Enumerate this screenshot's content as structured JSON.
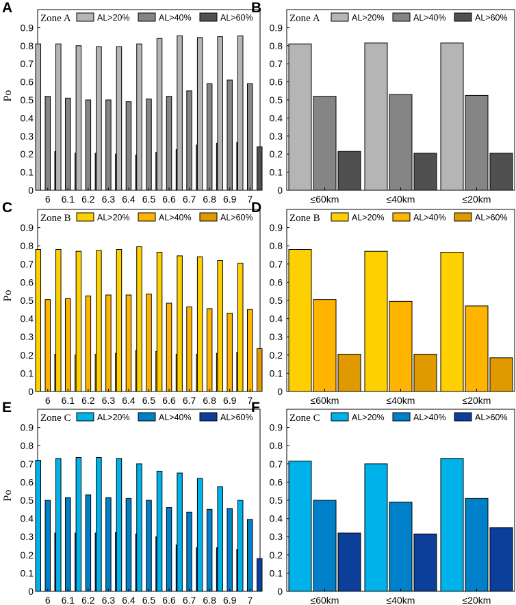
{
  "figure_title": "",
  "colors": {
    "A": [
      "#b5b5b5",
      "#858585",
      "#505050"
    ],
    "B": [
      "#ffd000",
      "#ffb400",
      "#e09a00"
    ],
    "C": [
      "#00b2ea",
      "#0080c8",
      "#0b3f99"
    ]
  },
  "chart_data": [
    {
      "id": "A",
      "panel_label": "A",
      "type": "bar",
      "zone_label": "Zone A",
      "ylabel": "Po",
      "ylim": [
        0,
        1.0
      ],
      "ticks": [
        "0",
        "0.1",
        "0.2",
        "0.3",
        "0.4",
        "0.5",
        "0.6",
        "0.7",
        "0.8",
        "0.9"
      ],
      "categories": [
        "6",
        "6.1",
        "6.2",
        "6.3",
        "6.4",
        "6.5",
        "6.6",
        "6.7",
        "6.8",
        "6.9",
        "7"
      ],
      "series": [
        {
          "name": "AL>20%",
          "values": [
            0.81,
            0.81,
            0.8,
            0.795,
            0.795,
            0.81,
            0.84,
            0.855,
            0.845,
            0.85,
            0.855
          ]
        },
        {
          "name": "AL>40%",
          "values": [
            0.52,
            0.51,
            0.5,
            0.5,
            0.49,
            0.505,
            0.52,
            0.55,
            0.59,
            0.61,
            0.59
          ]
        },
        {
          "name": "AL>60%",
          "values": [
            0.215,
            0.205,
            0.205,
            0.2,
            0.195,
            0.21,
            0.225,
            0.25,
            0.26,
            0.265,
            0.24
          ]
        }
      ]
    },
    {
      "id": "B",
      "panel_label": "B",
      "type": "bar",
      "zone_label": "Zone A",
      "ylabel": "",
      "ylim": [
        0,
        1.0
      ],
      "ticks": [
        "0",
        "0.1",
        "0.2",
        "0.3",
        "0.4",
        "0.5",
        "0.6",
        "0.7",
        "0.8",
        "0.9"
      ],
      "categories": [
        "≤60km",
        "≤40km",
        "≤20km"
      ],
      "series": [
        {
          "name": "AL>20%",
          "values": [
            0.81,
            0.815,
            0.815
          ]
        },
        {
          "name": "AL>40%",
          "values": [
            0.52,
            0.53,
            0.525
          ]
        },
        {
          "name": "AL>60%",
          "values": [
            0.215,
            0.205,
            0.205
          ]
        }
      ]
    },
    {
      "id": "C",
      "panel_label": "C",
      "type": "bar",
      "zone_label": "Zone B",
      "ylabel": "Po",
      "ylim": [
        0,
        1.0
      ],
      "ticks": [
        "0",
        "0.1",
        "0.2",
        "0.3",
        "0.4",
        "0.5",
        "0.6",
        "0.7",
        "0.8",
        "0.9"
      ],
      "categories": [
        "6",
        "6.1",
        "6.2",
        "6.3",
        "6.4",
        "6.5",
        "6.6",
        "6.7",
        "6.8",
        "6.9",
        "7"
      ],
      "series": [
        {
          "name": "AL>20%",
          "values": [
            0.78,
            0.78,
            0.77,
            0.775,
            0.78,
            0.795,
            0.765,
            0.745,
            0.74,
            0.72,
            0.705
          ]
        },
        {
          "name": "AL>40%",
          "values": [
            0.505,
            0.51,
            0.525,
            0.53,
            0.53,
            0.535,
            0.485,
            0.465,
            0.455,
            0.43,
            0.45
          ]
        },
        {
          "name": "AL>60%",
          "values": [
            0.205,
            0.2,
            0.205,
            0.21,
            0.225,
            0.22,
            0.205,
            0.205,
            0.21,
            0.215,
            0.235
          ]
        }
      ]
    },
    {
      "id": "D",
      "panel_label": "D",
      "type": "bar",
      "zone_label": "Zone B",
      "ylabel": "",
      "ylim": [
        0,
        1.0
      ],
      "ticks": [
        "0",
        "0.1",
        "0.2",
        "0.3",
        "0.4",
        "0.5",
        "0.6",
        "0.7",
        "0.8",
        "0.9"
      ],
      "categories": [
        "≤60km",
        "≤40km",
        "≤20km"
      ],
      "series": [
        {
          "name": "AL>20%",
          "values": [
            0.78,
            0.77,
            0.765
          ]
        },
        {
          "name": "AL>40%",
          "values": [
            0.505,
            0.495,
            0.47
          ]
        },
        {
          "name": "AL>60%",
          "values": [
            0.205,
            0.205,
            0.185
          ]
        }
      ]
    },
    {
      "id": "E",
      "panel_label": "E",
      "type": "bar",
      "zone_label": "Zone C",
      "ylabel": "Po",
      "ylim": [
        0,
        1.0
      ],
      "ticks": [
        "0",
        "0.1",
        "0.2",
        "0.3",
        "0.4",
        "0.5",
        "0.6",
        "0.7",
        "0.8",
        "0.9"
      ],
      "categories": [
        "6",
        "6.1",
        "6.2",
        "6.3",
        "6.4",
        "6.5",
        "6.6",
        "6.7",
        "6.8",
        "6.9",
        "7"
      ],
      "series": [
        {
          "name": "AL>20%",
          "values": [
            0.72,
            0.73,
            0.735,
            0.735,
            0.73,
            0.7,
            0.66,
            0.65,
            0.62,
            0.575,
            0.5
          ]
        },
        {
          "name": "AL>40%",
          "values": [
            0.5,
            0.515,
            0.53,
            0.515,
            0.51,
            0.5,
            0.46,
            0.435,
            0.45,
            0.455,
            0.395
          ]
        },
        {
          "name": "AL>60%",
          "values": [
            0.32,
            0.32,
            0.32,
            0.325,
            0.315,
            0.3,
            0.255,
            0.24,
            0.24,
            0.23,
            0.18
          ]
        }
      ]
    },
    {
      "id": "F",
      "panel_label": "F",
      "type": "bar",
      "zone_label": "Zone C",
      "ylabel": "",
      "ylim": [
        0,
        1.0
      ],
      "ticks": [
        "0",
        "0.1",
        "0.2",
        "0.3",
        "0.4",
        "0.5",
        "0.6",
        "0.7",
        "0.8",
        "0.9"
      ],
      "categories": [
        "≤60km",
        "≤40km",
        "≤20km"
      ],
      "series": [
        {
          "name": "AL>20%",
          "values": [
            0.715,
            0.7,
            0.73
          ]
        },
        {
          "name": "AL>40%",
          "values": [
            0.5,
            0.49,
            0.51
          ]
        },
        {
          "name": "AL>60%",
          "values": [
            0.32,
            0.315,
            0.35
          ]
        }
      ]
    }
  ]
}
